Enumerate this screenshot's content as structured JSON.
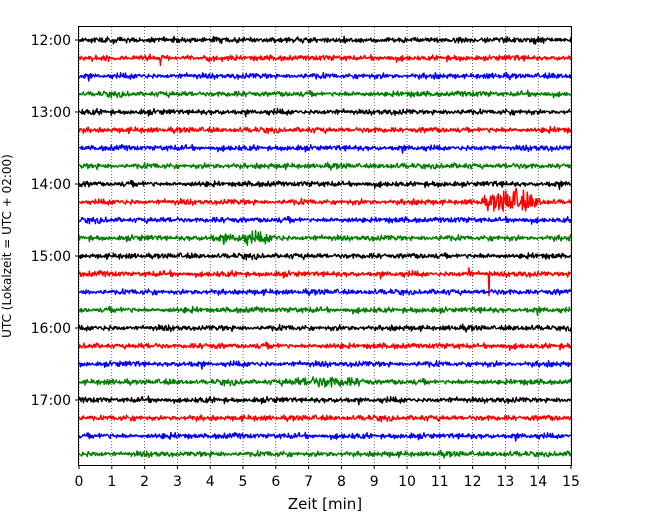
{
  "chart_data": {
    "type": "line",
    "title": "",
    "xlabel": "Zeit  [min]",
    "ylabel": "UTC (Lokalzeit = UTC + 02:00)",
    "xlim": [
      0,
      15
    ],
    "x_ticks": [
      "0",
      "1",
      "2",
      "3",
      "4",
      "5",
      "6",
      "7",
      "8",
      "9",
      "10",
      "11",
      "12",
      "13",
      "14",
      "15"
    ],
    "y_tick_labels": [
      "12:00",
      "13:00",
      "14:00",
      "15:00",
      "16:00",
      "17:00"
    ],
    "trace_start_times": [
      "12:00",
      "12:15",
      "12:30",
      "12:45",
      "13:00",
      "13:15",
      "13:30",
      "13:45",
      "14:00",
      "14:15",
      "14:30",
      "14:45",
      "15:00",
      "15:15",
      "15:30",
      "15:45",
      "16:00",
      "16:15",
      "16:30",
      "16:45",
      "17:00",
      "17:15",
      "17:30",
      "17:45"
    ],
    "trace_minutes_per_line": 15,
    "color_cycle": [
      "#000000",
      "#ff0000",
      "#0000ff",
      "#008000"
    ],
    "grid": "vertical dotted lines at each minute",
    "notable_events": [
      {
        "trace": "14:15",
        "minute_start": 12.2,
        "minute_end": 14.2,
        "description": "strong oscillation burst"
      },
      {
        "trace": "15:15",
        "minute": 12.5,
        "description": "sharp spike"
      },
      {
        "trace": "15:15",
        "minute": 11.9,
        "description": "spike"
      },
      {
        "trace": "14:45",
        "minute_start": 3.8,
        "minute_end": 6.5,
        "description": "elevated noise"
      },
      {
        "trace": "16:45",
        "minute_start": 6.0,
        "minute_end": 9.0,
        "description": "elevated noise"
      }
    ]
  }
}
